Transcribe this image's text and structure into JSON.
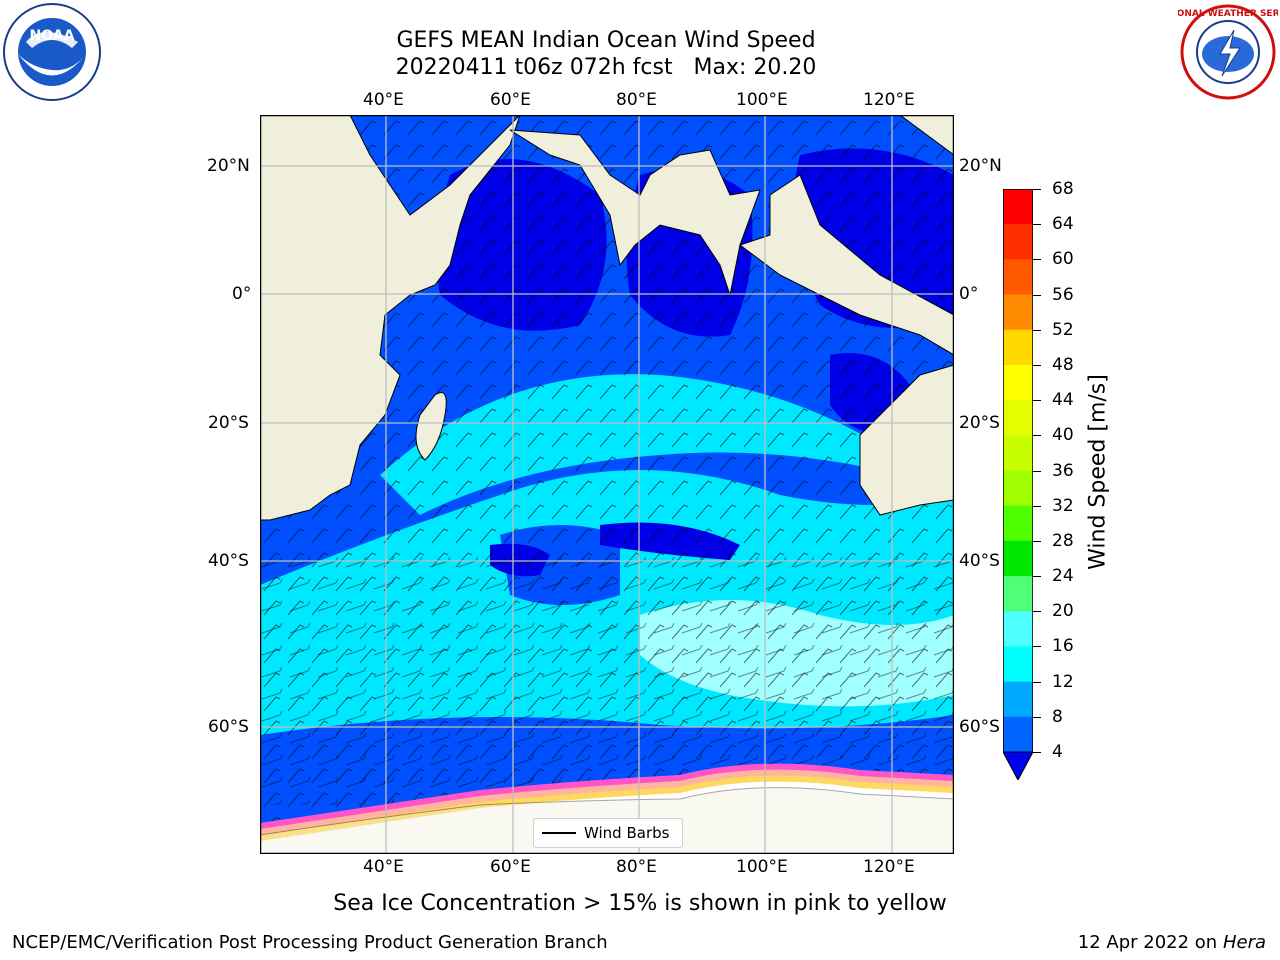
{
  "header": {
    "title_line1": "GEFS MEAN Indian Ocean Wind Speed",
    "title_line2": "20220411 t06z 072h fcst   Max: 20.20"
  },
  "map": {
    "lon_labels": [
      "40°E",
      "60°E",
      "80°E",
      "100°E",
      "120°E"
    ],
    "lat_labels": [
      "20°N",
      "0°",
      "20°S",
      "40°S",
      "60°S"
    ],
    "legend_label": "Wind Barbs",
    "colors": {
      "land": "#efefdc",
      "calm": "#0000e6",
      "light": "#0050ff",
      "medium": "#00e8ff",
      "strong": "#a0ffff",
      "ice_edge": "#ff55c8",
      "ice_mid": "#ffb4a0",
      "ice_inner": "#ffd860"
    }
  },
  "colorbar": {
    "label": "Wind Speed [m/s]",
    "ticks": [
      "68",
      "64",
      "60",
      "56",
      "52",
      "48",
      "44",
      "40",
      "36",
      "32",
      "28",
      "24",
      "20",
      "16",
      "12",
      "8",
      "4"
    ],
    "colors": [
      "#ff0000",
      "#ff3000",
      "#ff5a00",
      "#ff8c00",
      "#ffb400",
      "#ffd800",
      "#ffff00",
      "#e6ff00",
      "#c8ff00",
      "#a0ff00",
      "#50ff00",
      "#00e600",
      "#50ff78",
      "#a0ffff",
      "#50ffff",
      "#00ffff",
      "#00aaff",
      "#0064ff",
      "#0000ee"
    ]
  },
  "caption": "Sea Ice Concentration > 15% is shown in pink to yellow",
  "footer": {
    "left": "NCEP/EMC/Verification Post Processing Product Generation Branch",
    "date": "12 Apr 2022 on ",
    "machine": "Hera"
  },
  "logos": {
    "noaa_text": "NOAA",
    "nws_text": "NATIONAL WEATHER SERVICE"
  }
}
